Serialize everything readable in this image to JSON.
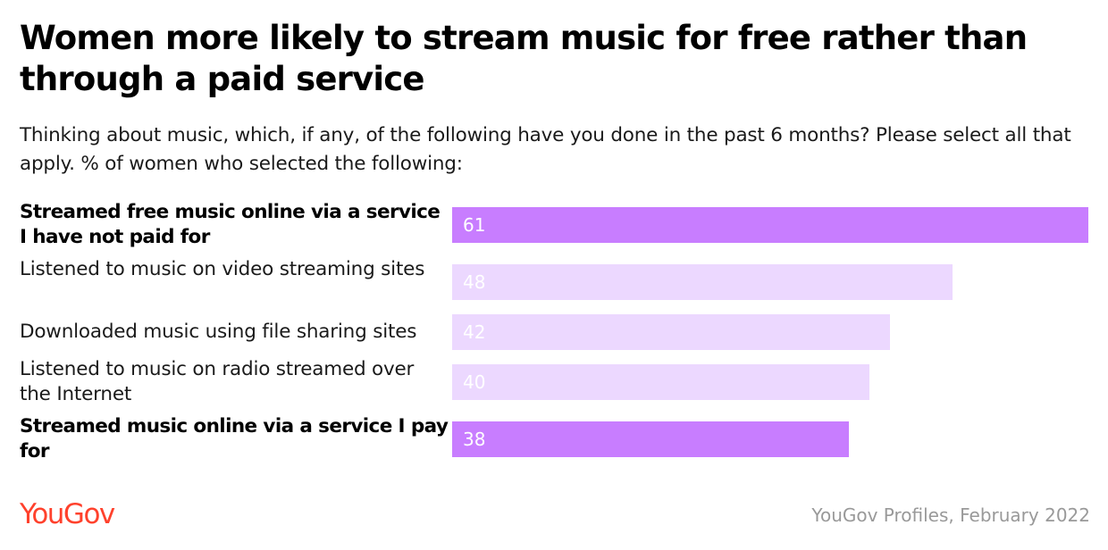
{
  "title": "Women more likely to stream music for free rather than through a paid service",
  "subtitle": "Thinking about music, which, if any, of the following have you done in the past 6 months? Please select all that apply. % of women who selected the following:",
  "brand": "YouGov",
  "source": "YouGov Profiles, February 2022",
  "colors": {
    "highlight": "#c87dff",
    "muted": "#ecd8ff",
    "brand": "#ff412c",
    "source_text": "#999999"
  },
  "chart_data": {
    "type": "bar",
    "orientation": "horizontal",
    "categories": [
      "Streamed free music online via a service I have not paid for",
      "Listened to music on video streaming sites",
      "Downloaded music using file sharing sites",
      "Listened to music on radio streamed over the Internet",
      "Streamed music online via a service I pay for"
    ],
    "values": [
      61,
      48,
      42,
      40,
      38
    ],
    "highlighted": [
      true,
      false,
      false,
      false,
      true
    ],
    "title": "Women more likely to stream music for free rather than through a paid service",
    "xlabel": "",
    "ylabel": "",
    "xlim": [
      0,
      61
    ],
    "grid": false,
    "legend": "none"
  }
}
